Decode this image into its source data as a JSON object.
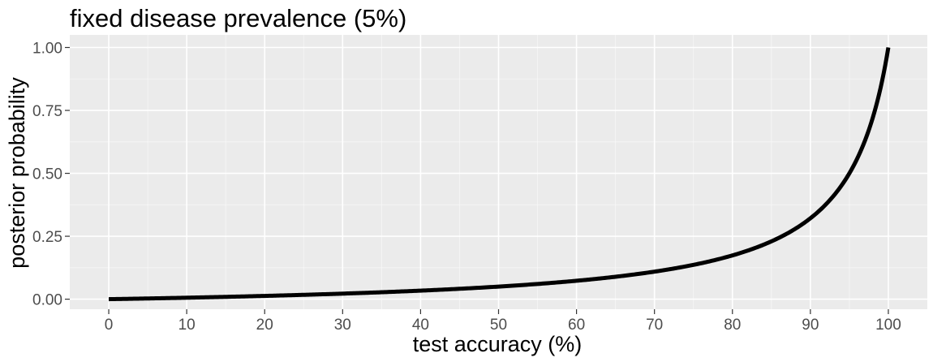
{
  "chart_data": {
    "type": "line",
    "title": "fixed disease prevalence (5%)",
    "xlabel": "test accuracy (%)",
    "ylabel": "posterior probability",
    "xlim": [
      -5,
      105
    ],
    "ylim": [
      -0.04,
      1.05
    ],
    "grid": true,
    "x_ticks": [
      0,
      10,
      20,
      30,
      40,
      50,
      60,
      70,
      80,
      90,
      100
    ],
    "x_tick_labels": [
      "0",
      "10",
      "20",
      "30",
      "40",
      "50",
      "60",
      "70",
      "80",
      "90",
      "100"
    ],
    "y_ticks": [
      0,
      0.25,
      0.5,
      0.75,
      1.0
    ],
    "y_tick_labels": [
      "0.00",
      "0.25",
      "0.50",
      "0.75",
      "1.00"
    ],
    "prevalence": 0.05,
    "series": [
      {
        "color": "#000000",
        "x": [
          0,
          5,
          10,
          15,
          20,
          25,
          30,
          35,
          40,
          45,
          50,
          55,
          60,
          65,
          70,
          75,
          80,
          85,
          90,
          92,
          94,
          96,
          97,
          98,
          99,
          100
        ],
        "y": [
          0.0,
          0.003,
          0.006,
          0.009,
          0.013,
          0.017,
          0.022,
          0.028,
          0.034,
          0.041,
          0.05,
          0.06,
          0.073,
          0.09,
          0.109,
          0.136,
          0.174,
          0.23,
          0.321,
          0.377,
          0.452,
          0.558,
          0.63,
          0.721,
          0.839,
          1.0
        ]
      }
    ]
  }
}
